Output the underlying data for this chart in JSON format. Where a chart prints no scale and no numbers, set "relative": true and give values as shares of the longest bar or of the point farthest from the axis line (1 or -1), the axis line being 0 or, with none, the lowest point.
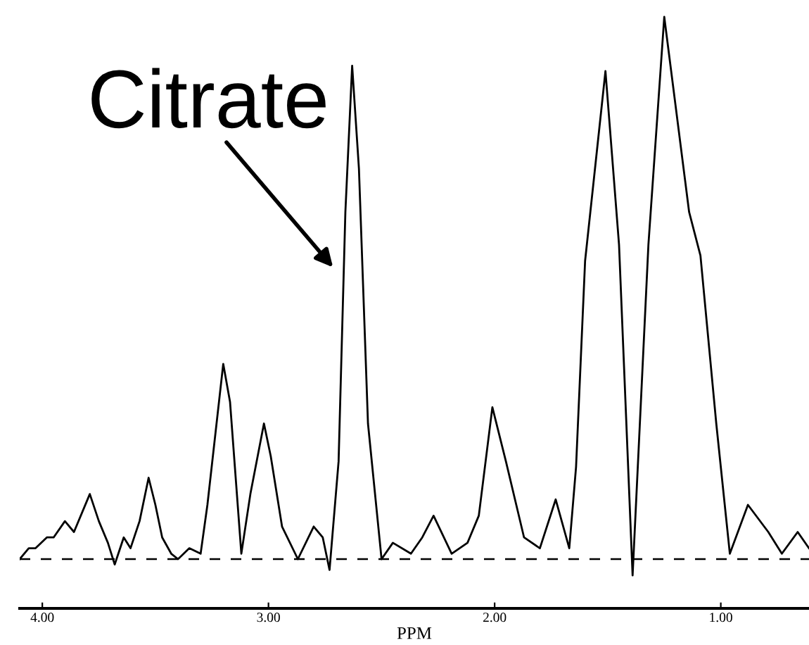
{
  "chart_data": {
    "type": "line",
    "xlabel": "PPM",
    "relative": true,
    "tick_labels": "x",
    "grid": false,
    "legend": false,
    "line_style": "solid",
    "marker": "none",
    "xlim": [
      4.1,
      0.61
    ],
    "xticks": [
      {
        "value": 4,
        "label": "4.00"
      },
      {
        "value": 3,
        "label": "3.00"
      },
      {
        "value": 2,
        "label": "2.00"
      },
      {
        "value": 1,
        "label": "1.00"
      }
    ],
    "ref_lines": [
      {
        "axis": "y",
        "value": 0,
        "color": "#000000",
        "line_style": "dashed"
      }
    ],
    "annotations": [
      "Citrate"
    ],
    "series": [
      {
        "color": "#000000",
        "x": [
          4.1,
          4.06,
          4.03,
          3.98,
          3.95,
          3.9,
          3.86,
          3.79,
          3.75,
          3.71,
          3.68,
          3.64,
          3.61,
          3.57,
          3.53,
          3.5,
          3.47,
          3.43,
          3.4,
          3.35,
          3.3,
          3.27,
          3.2,
          3.17,
          3.12,
          3.08,
          3.02,
          2.99,
          2.94,
          2.87,
          2.8,
          2.76,
          2.73,
          2.69,
          2.66,
          2.63,
          2.6,
          2.56,
          2.5,
          2.45,
          2.37,
          2.32,
          2.27,
          2.19,
          2.12,
          2.07,
          2.01,
          1.95,
          1.87,
          1.8,
          1.73,
          1.67,
          1.64,
          1.6,
          1.51,
          1.45,
          1.39,
          1.32,
          1.25,
          1.14,
          1.09,
          1.02,
          0.96,
          0.88,
          0.79,
          0.73,
          0.66,
          0.61
        ],
        "values": [
          0,
          0.02,
          0.02,
          0.04,
          0.04,
          0.07,
          0.05,
          0.12,
          0.07,
          0.03,
          -0.01,
          0.04,
          0.02,
          0.07,
          0.15,
          0.1,
          0.04,
          0.01,
          0.0,
          0.02,
          0.01,
          0.1,
          0.36,
          0.29,
          0.01,
          0.12,
          0.25,
          0.19,
          0.06,
          0.0,
          0.06,
          0.04,
          -0.02,
          0.18,
          0.64,
          0.91,
          0.72,
          0.25,
          0.0,
          0.03,
          0.01,
          0.04,
          0.08,
          0.01,
          0.03,
          0.08,
          0.28,
          0.18,
          0.04,
          0.02,
          0.11,
          0.02,
          0.17,
          0.55,
          0.9,
          0.58,
          -0.03,
          0.58,
          1.0,
          0.64,
          0.56,
          0.25,
          0.01,
          0.1,
          0.05,
          0.01,
          0.05,
          0.02
        ]
      }
    ]
  }
}
